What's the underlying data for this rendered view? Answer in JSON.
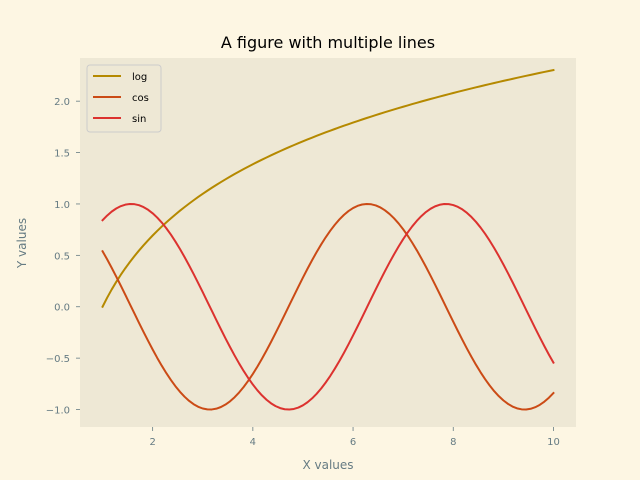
{
  "colors": {
    "figure_background": "#fdf6e3",
    "axes_background": "#eee8d5",
    "text_gray": "#657b83",
    "legend_border": "#cccccc"
  },
  "chart_data": {
    "type": "line",
    "title": "A figure with multiple lines",
    "xlabel": "X values",
    "ylabel": "Y values",
    "xlim": [
      0.55,
      10.45
    ],
    "ylim": [
      -1.17,
      2.42
    ],
    "xticks": [
      2,
      4,
      6,
      8,
      10
    ],
    "yticks": [
      -1.0,
      -0.5,
      0.0,
      0.5,
      1.0,
      1.5,
      2.0
    ],
    "ytick_labels": [
      "−1.0",
      "−0.5",
      "0.0",
      "0.5",
      "1.0",
      "1.5",
      "2.0"
    ],
    "grid": false,
    "legend_position": "top-left",
    "x_range": [
      1,
      10
    ],
    "n_points": 100,
    "series": [
      {
        "name": "log",
        "function": "log",
        "color": "#b58900"
      },
      {
        "name": "cos",
        "function": "cos",
        "color": "#cb4b16"
      },
      {
        "name": "sin",
        "function": "sin",
        "color": "#dc322f"
      }
    ]
  }
}
